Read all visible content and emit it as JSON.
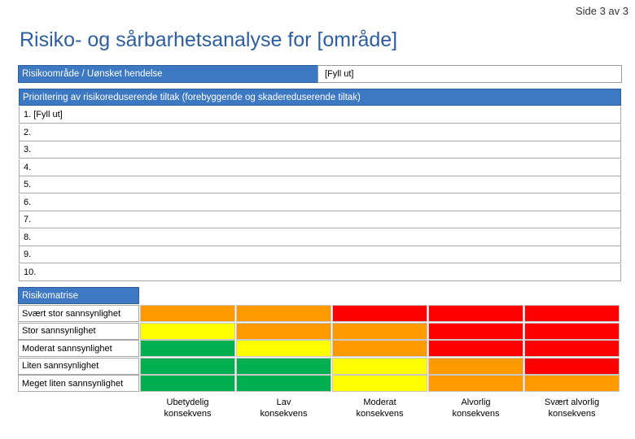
{
  "page_number": "Side 3 av 3",
  "title": "Risiko- og sårbarhetsanalyse for [område]",
  "event_row": {
    "label": "Risikoområde / Uønsket hendelse",
    "value": "[Fyll ut]"
  },
  "measures": {
    "header": "Prioritering av risikoreduserende tiltak (forebyggende og skadereduserende tiltak)",
    "items": [
      "1. [Fyll ut]",
      "2.",
      "3.",
      "4.",
      "5.",
      "6.",
      "7.",
      "8.",
      "9.",
      "10."
    ]
  },
  "matrix": {
    "header": "Risikomatrise",
    "rows": [
      {
        "label": "Svært stor sannsynlighet",
        "cells": [
          "orange",
          "orange",
          "red",
          "red",
          "red"
        ]
      },
      {
        "label": "Stor sannsynlighet",
        "cells": [
          "yellow",
          "orange",
          "orange",
          "red",
          "red"
        ]
      },
      {
        "label": "Moderat sannsynlighet",
        "cells": [
          "green",
          "yellow",
          "orange",
          "red",
          "red"
        ]
      },
      {
        "label": "Liten sannsynlighet",
        "cells": [
          "green",
          "green",
          "yellow",
          "orange",
          "red"
        ]
      },
      {
        "label": "Meget liten sannsynlighet",
        "cells": [
          "green",
          "green",
          "yellow",
          "orange",
          "orange"
        ]
      }
    ],
    "columns": [
      [
        "Ubetydelig",
        "konsekvens"
      ],
      [
        "Lav",
        "konsekvens"
      ],
      [
        "Moderat",
        "konsekvens"
      ],
      [
        "Alvorlig",
        "konsekvens"
      ],
      [
        "Svært alvorlig",
        "konsekvens"
      ]
    ],
    "colors": {
      "green": "#00b050",
      "yellow": "#ffff00",
      "orange": "#ff9900",
      "red": "#ff0000"
    }
  },
  "colors": {
    "header_bg": "#3d78c2",
    "title": "#2f5e9e"
  }
}
